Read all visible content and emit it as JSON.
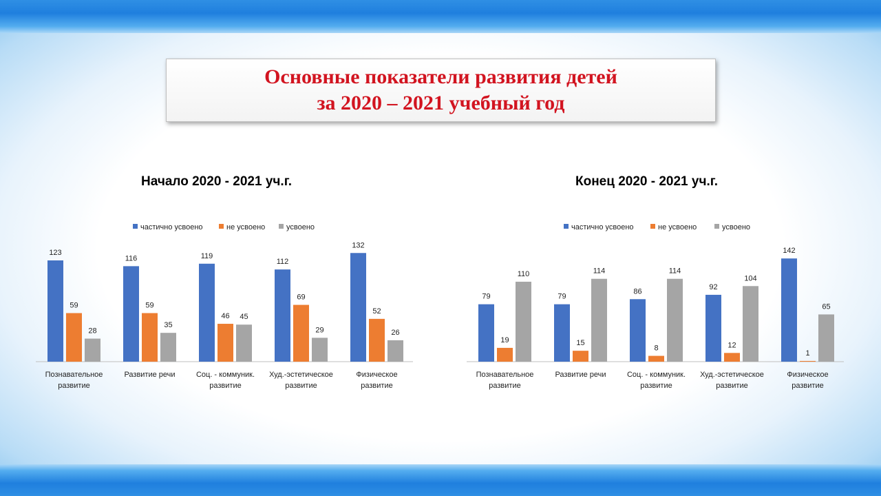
{
  "colors": {
    "partial": "#4472c4",
    "not_mastered": "#ed7d31",
    "mastered": "#a5a5a5",
    "title_red": "#d21420"
  },
  "header": {
    "title_line1": "Основные показатели развития детей",
    "title_line2": "за 2020 – 2021 учебный год"
  },
  "chart_data": [
    {
      "type": "bar",
      "title": "Начало 2020 - 2021 уч.г.",
      "categories": [
        [
          "Познавательное",
          "развитие"
        ],
        [
          "Развитие речи"
        ],
        [
          "Соц. - коммуник.",
          "развитие"
        ],
        [
          "Худ.-эстетическое",
          "развитие"
        ],
        [
          "Физическое",
          "развитие"
        ]
      ],
      "series": [
        {
          "name": "частично усвоено",
          "color": "#4472c4",
          "values": [
            123,
            116,
            119,
            112,
            132
          ]
        },
        {
          "name": "не усвоено",
          "color": "#ed7d31",
          "values": [
            59,
            59,
            46,
            69,
            52
          ]
        },
        {
          "name": "усвоено",
          "color": "#a5a5a5",
          "values": [
            28,
            35,
            45,
            29,
            26
          ]
        }
      ],
      "legend": "top",
      "grid": false,
      "ylim": [
        0,
        140
      ]
    },
    {
      "type": "bar",
      "title": "Конец 2020 - 2021 уч.г.",
      "categories": [
        [
          "Познавательное",
          "развитие"
        ],
        [
          "Развитие речи"
        ],
        [
          "Соц. - коммуник.",
          "развитие"
        ],
        [
          "Худ.-эстетическое",
          "развитие"
        ],
        [
          "Физическое",
          "развитие"
        ]
      ],
      "series": [
        {
          "name": "частично усвоено",
          "color": "#4472c4",
          "values": [
            79,
            79,
            86,
            92,
            142
          ]
        },
        {
          "name": "не усвоено",
          "color": "#ed7d31",
          "values": [
            19,
            15,
            8,
            12,
            1
          ]
        },
        {
          "name": "усвоено",
          "color": "#a5a5a5",
          "values": [
            110,
            114,
            114,
            104,
            65
          ]
        }
      ],
      "legend": "top",
      "grid": false,
      "ylim": [
        0,
        150
      ]
    }
  ]
}
